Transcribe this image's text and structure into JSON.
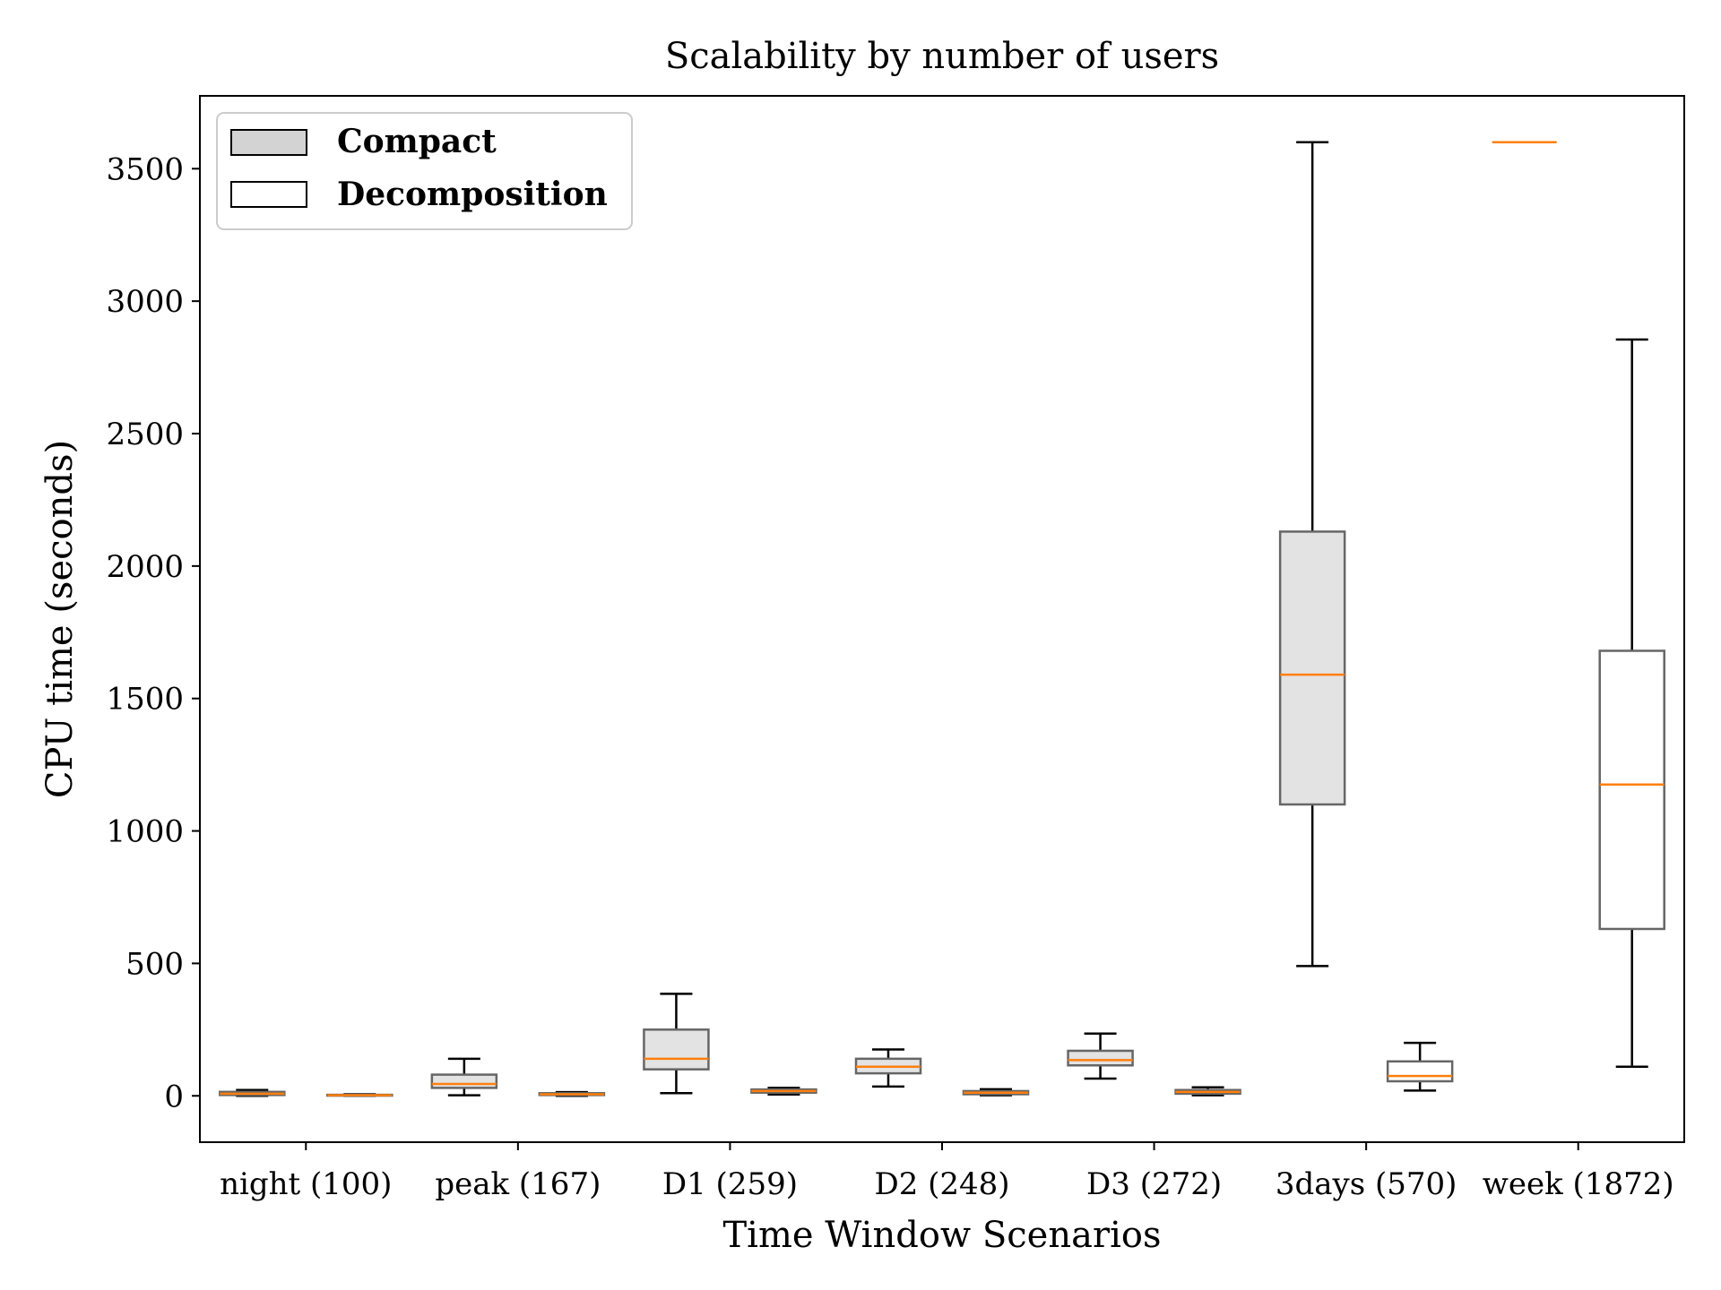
{
  "chart_data": {
    "type": "boxplot",
    "title": "Scalability by number of users",
    "xlabel": "Time Window Scenarios",
    "ylabel": "CPU time (seconds)",
    "ylim": [
      -175,
      3775
    ],
    "yticks": [
      0,
      500,
      1000,
      1500,
      2000,
      2500,
      3000,
      3500
    ],
    "categories": [
      "night (100)",
      "peak (167)",
      "D1 (259)",
      "D2 (248)",
      "D3 (272)",
      "3days (570)",
      "week (1872)"
    ],
    "legend": {
      "position": "top-left",
      "entries": [
        {
          "label": "Compact",
          "fill": "#d3d3d3"
        },
        {
          "label": "Decomposition",
          "fill": "#ffffff"
        }
      ]
    },
    "colors": {
      "compact_box": "#e3e3e3",
      "decomposition_box": "#ffffff",
      "box_edge": "#666666",
      "median": "#ff7f0e",
      "whisker": "#000000"
    },
    "series": [
      {
        "name": "Compact",
        "boxes": [
          {
            "whislo": 0,
            "q1": 3,
            "med": 8,
            "q3": 15,
            "whishi": 22
          },
          {
            "whislo": 2,
            "q1": 30,
            "med": 45,
            "q3": 80,
            "whishi": 140
          },
          {
            "whislo": 10,
            "q1": 100,
            "med": 140,
            "q3": 250,
            "whishi": 385
          },
          {
            "whislo": 35,
            "q1": 85,
            "med": 110,
            "q3": 140,
            "whishi": 175
          },
          {
            "whislo": 65,
            "q1": 115,
            "med": 135,
            "q3": 170,
            "whishi": 235
          },
          {
            "whislo": 490,
            "q1": 1100,
            "med": 1590,
            "q3": 2130,
            "whishi": 3600
          },
          {
            "whislo": 3600,
            "q1": 3600,
            "med": 3600,
            "q3": 3600,
            "whishi": 3600
          }
        ]
      },
      {
        "name": "Decomposition",
        "boxes": [
          {
            "whislo": 0,
            "q1": 1,
            "med": 2,
            "q3": 4,
            "whishi": 6
          },
          {
            "whislo": 0,
            "q1": 3,
            "med": 6,
            "q3": 10,
            "whishi": 14
          },
          {
            "whislo": 5,
            "q1": 12,
            "med": 18,
            "q3": 24,
            "whishi": 30
          },
          {
            "whislo": 2,
            "q1": 6,
            "med": 12,
            "q3": 18,
            "whishi": 25
          },
          {
            "whislo": 2,
            "q1": 8,
            "med": 15,
            "q3": 22,
            "whishi": 32
          },
          {
            "whislo": 20,
            "q1": 55,
            "med": 75,
            "q3": 130,
            "whishi": 200
          },
          {
            "whislo": 110,
            "q1": 630,
            "med": 1175,
            "q3": 1680,
            "whishi": 2855
          }
        ]
      }
    ]
  }
}
